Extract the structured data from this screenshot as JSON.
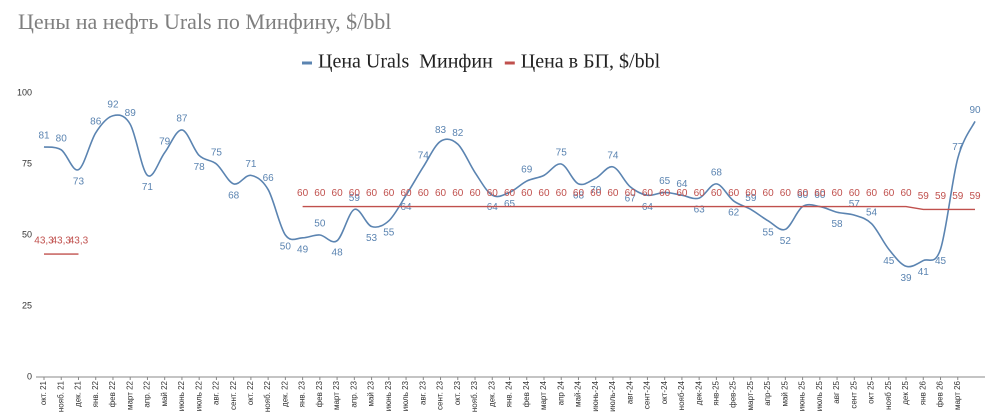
{
  "chart_data": {
    "type": "line",
    "title": "Цены на нефть Urals по Минфину, $/bbl",
    "categories": [
      "окт. 21",
      "нояб. 21",
      "дек. 21",
      "янв. 22",
      "фев 22",
      "март 22",
      "апр. 22",
      "май 22",
      "июнь 22",
      "июль 22",
      "авг. 22",
      "сент. 22",
      "окт. 22",
      "нояб. 22",
      "дек. 22",
      "янв. 23",
      "фев 23",
      "март 23",
      "апр. 23",
      "май 23",
      "июнь 23",
      "июль 23",
      "авг. 23",
      "сент. 23",
      "окт. 23",
      "нояб. 23",
      "дек. 23",
      "янв. 24",
      "фев 24",
      "март 24",
      "апр 24",
      "май-24",
      "июнь-24",
      "июль-24",
      "авг-24",
      "сент-24",
      "окт-24",
      "нояб-24",
      "дек-24",
      "янв-25",
      "фев-25",
      "март-25",
      "апр-25",
      "май 25",
      "июнь 25",
      "июль 25",
      "авг 25",
      "сент 25",
      "окт 25",
      "нояб 25",
      "дек 25",
      "янв 26",
      "фев 26",
      "март 26",
      null
    ],
    "series": [
      {
        "name": "Цена Urals  Минфин",
        "color": "#5b84b1",
        "values": [
          81,
          80,
          73,
          86,
          92,
          89,
          71,
          79,
          87,
          78,
          75,
          68,
          71,
          66,
          50,
          49,
          50,
          48,
          59,
          53,
          55,
          64,
          74,
          83,
          82,
          72,
          64,
          65,
          69,
          71,
          75,
          68,
          70,
          74,
          67,
          64,
          65,
          64,
          63,
          68,
          62,
          59,
          55,
          52,
          60,
          60,
          58,
          57,
          54,
          45,
          39,
          41,
          45,
          77,
          90
        ],
        "value_labels": [
          81,
          80,
          73,
          86,
          92,
          89,
          71,
          79,
          87,
          78,
          75,
          68,
          71,
          66,
          50,
          49,
          50,
          48,
          59,
          53,
          55,
          64,
          74,
          83,
          82,
          null,
          64,
          65,
          69,
          null,
          75,
          68,
          70,
          74,
          67,
          64,
          65,
          64,
          63,
          68,
          62,
          59,
          55,
          52,
          60,
          60,
          58,
          57,
          54,
          45,
          39,
          41,
          45,
          77,
          90
        ]
      },
      {
        "name": "Цена в БП, $/bbl",
        "color": "#c0504d",
        "values": [
          43.3,
          43.3,
          43.3,
          null,
          null,
          null,
          null,
          null,
          null,
          null,
          null,
          null,
          null,
          null,
          null,
          60,
          60,
          60,
          60,
          60,
          60,
          60,
          60,
          60,
          60,
          60,
          60,
          60,
          60,
          60,
          60,
          60,
          60,
          60,
          60,
          60,
          60,
          60,
          60,
          60,
          60,
          60,
          60,
          60,
          60,
          60,
          60,
          60,
          60,
          60,
          60,
          59,
          59,
          59,
          59
        ],
        "value_labels": [
          "43,3",
          "43,3",
          "43,3",
          null,
          null,
          null,
          null,
          null,
          null,
          null,
          null,
          null,
          null,
          null,
          null,
          60,
          60,
          60,
          60,
          60,
          60,
          60,
          60,
          60,
          60,
          60,
          60,
          60,
          60,
          60,
          60,
          60,
          60,
          60,
          60,
          60,
          60,
          60,
          60,
          60,
          60,
          60,
          60,
          60,
          60,
          60,
          60,
          60,
          60,
          60,
          60,
          59,
          59,
          59,
          59
        ]
      }
    ],
    "ylim": [
      0,
      100
    ],
    "yticks": [
      0,
      25,
      50,
      75,
      100
    ],
    "grid": false,
    "legend": "top"
  }
}
